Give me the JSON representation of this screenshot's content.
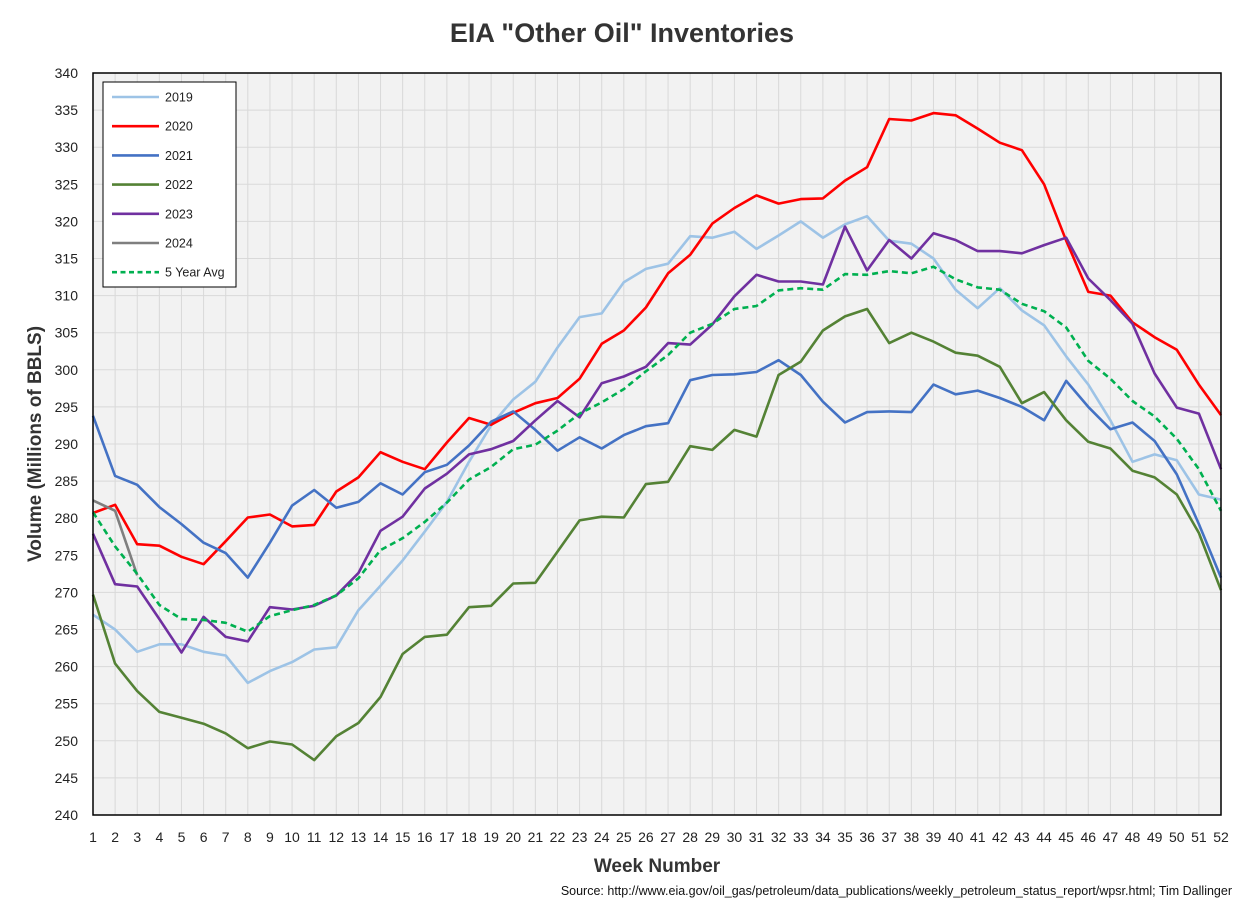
{
  "title": "EIA \"Other Oil\" Inventories",
  "source": "Source: http://www.eia.gov/oil_gas/petroleum/data_publications/weekly_petroleum_status_report/wpsr.html; Tim Dallinger",
  "chart_data": {
    "type": "line",
    "title": "EIA \"Other Oil\" Inventories",
    "xlabel": "Week Number",
    "ylabel": "Volume (Millions of BBLS)",
    "xlim": [
      1,
      52
    ],
    "ylim": [
      240,
      340
    ],
    "ytick_step": 5,
    "grid": true,
    "legend_position": "top-left",
    "x": [
      1,
      2,
      3,
      4,
      5,
      6,
      7,
      8,
      9,
      10,
      11,
      12,
      13,
      14,
      15,
      16,
      17,
      18,
      19,
      20,
      21,
      22,
      23,
      24,
      25,
      26,
      27,
      28,
      29,
      30,
      31,
      32,
      33,
      34,
      35,
      36,
      37,
      38,
      39,
      40,
      41,
      42,
      43,
      44,
      45,
      46,
      47,
      48,
      49,
      50,
      51,
      52
    ],
    "series": [
      {
        "name": "2019",
        "color": "#9DC3E6",
        "dashed": false,
        "values": [
          267.0,
          265.0,
          262.0,
          263.0,
          263.0,
          262.0,
          261.5,
          257.8,
          259.4,
          260.6,
          262.3,
          262.6,
          267.6,
          270.9,
          274.3,
          278.2,
          282.2,
          287.6,
          292.5,
          296.0,
          298.4,
          303.0,
          307.1,
          307.6,
          311.8,
          313.6,
          314.3,
          318.0,
          317.8,
          318.6,
          316.3,
          318.1,
          320.0,
          317.8,
          319.6,
          320.7,
          317.4,
          317.0,
          315.0,
          310.8,
          308.3,
          311.0,
          308.0,
          306.0,
          301.8,
          298.0,
          293.2,
          287.6,
          288.6,
          287.8,
          283.2,
          282.5
        ]
      },
      {
        "name": "2020",
        "color": "#FF0000",
        "dashed": false,
        "values": [
          280.7,
          281.8,
          276.5,
          276.3,
          274.8,
          273.8,
          276.9,
          280.1,
          280.5,
          278.9,
          279.1,
          283.6,
          285.5,
          288.9,
          287.6,
          286.6,
          290.2,
          293.5,
          292.6,
          294.2,
          295.5,
          296.2,
          298.8,
          303.5,
          305.3,
          308.4,
          313.0,
          315.5,
          319.7,
          321.8,
          323.5,
          322.4,
          323.0,
          323.1,
          325.5,
          327.3,
          333.8,
          333.6,
          334.6,
          334.3,
          332.5,
          330.6,
          329.6,
          325.0,
          317.4,
          310.5,
          310.0,
          306.4,
          304.4,
          302.7,
          298.0,
          293.9
        ]
      },
      {
        "name": "2021",
        "color": "#4472C4",
        "dashed": false,
        "values": [
          293.8,
          285.7,
          284.5,
          281.5,
          279.2,
          276.7,
          275.3,
          272.0,
          276.7,
          281.7,
          283.8,
          281.4,
          282.2,
          284.7,
          283.2,
          286.2,
          287.2,
          289.8,
          293.0,
          294.4,
          291.9,
          289.1,
          290.9,
          289.4,
          291.2,
          292.4,
          292.8,
          298.6,
          299.3,
          299.4,
          299.7,
          301.3,
          299.3,
          295.7,
          292.9,
          294.3,
          294.4,
          294.3,
          298.0,
          296.7,
          297.2,
          296.2,
          295.0,
          293.2,
          298.5,
          295.0,
          292.0,
          292.9,
          290.4,
          285.9,
          279.2,
          272.0
        ]
      },
      {
        "name": "2022",
        "color": "#548235",
        "dashed": false,
        "values": [
          269.7,
          260.4,
          256.7,
          253.9,
          253.1,
          252.3,
          251.0,
          249.0,
          249.9,
          249.5,
          247.4,
          250.6,
          252.4,
          255.9,
          261.7,
          264.0,
          264.3,
          268.0,
          268.2,
          271.2,
          271.3,
          275.5,
          279.7,
          280.2,
          280.1,
          284.6,
          284.9,
          289.7,
          289.2,
          291.9,
          291.0,
          299.3,
          301.1,
          305.3,
          307.2,
          308.2,
          303.6,
          305.0,
          303.8,
          302.3,
          301.9,
          300.4,
          295.5,
          297.0,
          293.2,
          290.3,
          289.4,
          286.4,
          285.5,
          283.2,
          278.0,
          270.3
        ]
      },
      {
        "name": "2023",
        "color": "#7030A0",
        "dashed": false,
        "values": [
          277.9,
          271.1,
          270.8,
          266.4,
          261.9,
          266.7,
          264.0,
          263.4,
          268.0,
          267.7,
          268.2,
          269.6,
          272.6,
          278.3,
          280.2,
          284.0,
          286.0,
          288.6,
          289.3,
          290.4,
          293.2,
          295.8,
          293.6,
          298.2,
          299.1,
          300.4,
          303.6,
          303.4,
          306.1,
          309.9,
          312.8,
          311.9,
          311.9,
          311.5,
          319.3,
          313.4,
          317.5,
          315.0,
          318.4,
          317.5,
          316.0,
          316.0,
          315.7,
          316.8,
          317.8,
          312.3,
          309.4,
          306.2,
          299.5,
          294.9,
          294.1,
          286.6
        ]
      },
      {
        "name": "2024",
        "color": "#7F7F7F",
        "dashed": false,
        "values": [
          282.4,
          281.0,
          272.3,
          null,
          null,
          null,
          null,
          null,
          null,
          null,
          null,
          null,
          null,
          null,
          null,
          null,
          null,
          null,
          null,
          null,
          null,
          null,
          null,
          null,
          null,
          null,
          null,
          null,
          null,
          null,
          null,
          null,
          null,
          null,
          null,
          null,
          null,
          null,
          null,
          null,
          null,
          null,
          null,
          null,
          null,
          null,
          null,
          null,
          null,
          null,
          null,
          null
        ]
      },
      {
        "name": "5 Year Avg",
        "color": "#00B050",
        "dashed": true,
        "values": [
          280.8,
          276.2,
          272.5,
          268.3,
          266.4,
          266.3,
          265.9,
          264.7,
          266.8,
          267.6,
          268.3,
          269.6,
          271.9,
          275.7,
          277.3,
          279.5,
          282.1,
          285.2,
          286.9,
          289.3,
          289.9,
          291.8,
          294.1,
          295.6,
          297.4,
          299.8,
          302.0,
          305.0,
          306.2,
          308.2,
          308.6,
          310.7,
          311.0,
          310.8,
          312.9,
          312.8,
          313.3,
          313.0,
          313.9,
          312.2,
          311.1,
          310.8,
          308.9,
          307.9,
          305.7,
          301.2,
          298.8,
          295.8,
          293.7,
          290.7,
          286.6,
          281.0
        ]
      }
    ]
  }
}
